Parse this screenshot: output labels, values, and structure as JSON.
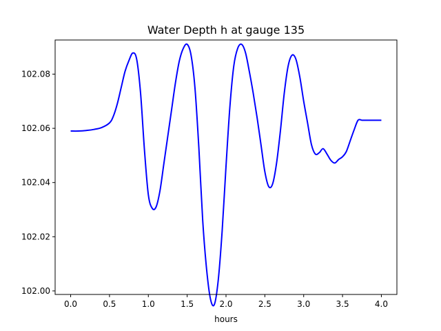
{
  "chart_data": {
    "type": "line",
    "title": "Water Depth h at gauge 135",
    "xlabel": "hours",
    "ylabel": "",
    "xlim": [
      -0.2,
      4.2
    ],
    "ylim": [
      101.9987,
      102.0926
    ],
    "grid": false,
    "x_ticks": [
      0.0,
      0.5,
      1.0,
      1.5,
      2.0,
      2.5,
      3.0,
      3.5,
      4.0
    ],
    "x_tick_labels": [
      "0.0",
      "0.5",
      "1.0",
      "1.5",
      "2.0",
      "2.5",
      "3.0",
      "3.5",
      "4.0"
    ],
    "y_ticks": [
      102.0,
      102.02,
      102.04,
      102.06,
      102.08
    ],
    "y_tick_labels": [
      "102.00",
      "102.02",
      "102.04",
      "102.06",
      "102.08"
    ],
    "series": [
      {
        "color": "#0000ff",
        "x": [
          0.0,
          0.1,
          0.2,
          0.3,
          0.4,
          0.5,
          0.55,
          0.6,
          0.65,
          0.7,
          0.75,
          0.8,
          0.85,
          0.9,
          0.95,
          1.0,
          1.05,
          1.1,
          1.15,
          1.2,
          1.25,
          1.3,
          1.35,
          1.4,
          1.45,
          1.5,
          1.55,
          1.6,
          1.65,
          1.7,
          1.75,
          1.8,
          1.85,
          1.9,
          1.95,
          2.0,
          2.05,
          2.1,
          2.15,
          2.2,
          2.25,
          2.3,
          2.35,
          2.4,
          2.45,
          2.5,
          2.55,
          2.6,
          2.65,
          2.7,
          2.75,
          2.8,
          2.85,
          2.9,
          2.95,
          3.0,
          3.05,
          3.1,
          3.15,
          3.2,
          3.25,
          3.3,
          3.35,
          3.4,
          3.45,
          3.5,
          3.55,
          3.6,
          3.65,
          3.7,
          3.75,
          3.8,
          3.85,
          3.9,
          3.95,
          4.0
        ],
        "y": [
          102.059,
          102.059,
          102.0592,
          102.0596,
          102.0603,
          102.062,
          102.0645,
          102.069,
          102.075,
          102.081,
          102.085,
          102.0878,
          102.0855,
          102.073,
          102.052,
          102.0355,
          102.0305,
          102.031,
          102.037,
          102.047,
          102.057,
          102.067,
          102.077,
          102.085,
          102.0895,
          102.091,
          102.087,
          102.075,
          102.053,
          102.026,
          102.008,
          101.997,
          101.995,
          102.004,
          102.022,
          102.046,
          102.068,
          102.083,
          102.0895,
          102.091,
          102.088,
          102.081,
          102.073,
          102.064,
          102.054,
          102.044,
          102.0385,
          102.0395,
          102.047,
          102.059,
          102.073,
          102.083,
          102.087,
          102.0855,
          102.079,
          102.07,
          102.062,
          102.054,
          102.0505,
          102.051,
          102.0525,
          102.0505,
          102.0482,
          102.0472,
          102.0485,
          102.0495,
          102.0515,
          102.0555,
          102.0595,
          102.063,
          102.063,
          102.063,
          102.063,
          102.063,
          102.063,
          102.063
        ]
      }
    ]
  }
}
